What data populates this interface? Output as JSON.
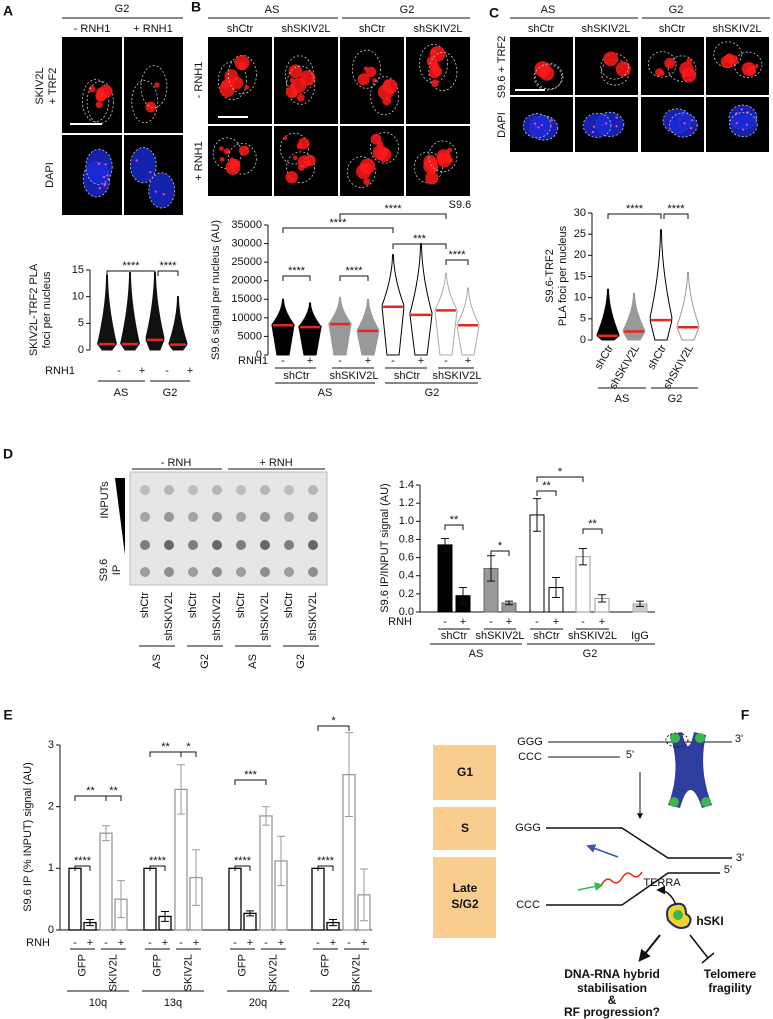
{
  "panel_a": {
    "letter": "A",
    "phase": "G2",
    "columns": [
      "- RNH1",
      "+ RNH1"
    ],
    "stain": [
      "SKIV2L",
      "+ TRF2"
    ],
    "counterstain": "DAPI",
    "chart": {
      "ylabel": [
        "SKIV2L-TRF2 PLA",
        "foci per nucleus"
      ],
      "ylim": [
        0,
        15
      ],
      "yticks": [
        0,
        5,
        10,
        15
      ],
      "medians": [
        1.1,
        1.1,
        1.9,
        1.0
      ],
      "maxima": [
        14,
        14.5,
        14.5,
        10
      ],
      "colors": [
        "#111111",
        "#111111",
        "#111111",
        "#111111"
      ],
      "treatment_label": "RNH1",
      "treatment": [
        "-",
        "+",
        "-",
        "+"
      ],
      "groups": [
        "AS",
        "G2"
      ],
      "significance": [
        "****",
        "****"
      ]
    }
  },
  "panel_b": {
    "letter": "B",
    "phases": [
      "AS",
      "G2"
    ],
    "columns": [
      "shCtr",
      "shSKIV2L",
      "shCtr",
      "shSKIV2L"
    ],
    "rows": [
      "- RNH1",
      "+ RNH1"
    ],
    "stain": "S9.6",
    "chart": {
      "ylabel": "S9.6 signal per nucleus (AU)",
      "ylim": [
        0,
        35000
      ],
      "yticks": [
        0,
        5000,
        10000,
        15000,
        20000,
        25000,
        30000,
        35000
      ],
      "medians": [
        8000,
        7500,
        8300,
        6500,
        13000,
        10800,
        12000,
        8000
      ],
      "maxima": [
        15000,
        14000,
        15500,
        15000,
        27000,
        30000,
        22000,
        18000
      ],
      "colors": [
        "#000000",
        "#000000",
        "#999999",
        "#999999",
        "#ffffff",
        "#ffffff",
        "#ffffff",
        "#ffffff"
      ],
      "edge_colors": [
        "#000000",
        "#000000",
        "#999999",
        "#999999",
        "#000000",
        "#000000",
        "#aaaaaa",
        "#aaaaaa"
      ],
      "treatment_label": "RNH1",
      "treatment": [
        "-",
        "+",
        "-",
        "+",
        "-",
        "+",
        "-",
        "+"
      ],
      "lines": [
        "shCtr",
        "shSKIV2L",
        "shCtr",
        "shSKIV2L"
      ],
      "groups": [
        "AS",
        "G2"
      ],
      "significance": [
        "****",
        "****",
        "***",
        "****",
        "****",
        "****"
      ]
    }
  },
  "panel_c": {
    "letter": "C",
    "phases": [
      "AS",
      "G2"
    ],
    "columns": [
      "shCtr",
      "shSKIV2L",
      "shCtr",
      "shSKIV2L"
    ],
    "stain": "S9.6 + TRF2",
    "counterstain": "DAPI",
    "chart": {
      "ylabel": [
        "S9.6-TRF2",
        "PLA foci per nucleus"
      ],
      "ylim": [
        0,
        30
      ],
      "yticks": [
        0,
        5,
        10,
        15,
        20,
        25,
        30
      ],
      "medians": [
        1,
        2,
        4.7,
        3
      ],
      "maxima": [
        12,
        11,
        26,
        16
      ],
      "colors": [
        "#000000",
        "#999999",
        "#ffffff",
        "#ffffff"
      ],
      "edge_colors": [
        "#000000",
        "#999999",
        "#000000",
        "#999999"
      ],
      "lines": [
        "shCtr",
        "shSKIV2L",
        "shCtr",
        "shSKIV2L"
      ],
      "groups": [
        "AS",
        "G2"
      ],
      "significance": [
        "****",
        "****"
      ]
    }
  },
  "panel_d": {
    "letter": "D",
    "blot": {
      "treatments": [
        "- RNH",
        "+ RNH"
      ],
      "inputs_label": "INPUTs",
      "ip_label": [
        "S9.6",
        "IP"
      ],
      "lanes": [
        "shCtr",
        "shSKIV2L",
        "shCtr",
        "shSKIV2L",
        "shCtr",
        "shSKIV2L",
        "shCtr",
        "shSKIV2L"
      ],
      "groups": [
        "AS",
        "G2",
        "AS",
        "G2"
      ]
    },
    "chart": {
      "ylabel": "S9.6 IP/INPUT signal (AU)",
      "ylim": [
        0,
        1.4
      ],
      "yticks": [
        {
          "value": 0,
          "label": "0.0"
        },
        0.2,
        0.4,
        0.6,
        0.8,
        {
          "value": 1,
          "label": "1.0"
        },
        1.2,
        1.4
      ],
      "values": [
        0.74,
        0.18,
        0.48,
        0.1,
        1.07,
        0.27,
        0.61,
        0.15,
        0.09
      ],
      "errors": [
        0.07,
        0.09,
        0.14,
        0.02,
        0.18,
        0.11,
        0.09,
        0.04,
        0.03
      ],
      "colors": [
        "#000000",
        "#000000",
        "#999999",
        "#999999",
        "#ffffff",
        "#ffffff",
        "#ffffff",
        "#ffffff",
        "#cccccc"
      ],
      "edge_colors": [
        "#000000",
        "#000000",
        "#666666",
        "#666666",
        "#000000",
        "#000000",
        "#999999",
        "#999999",
        "#aaaaaa"
      ],
      "treatment_label": "RNH",
      "treatment": [
        "-",
        "+",
        "-",
        "+",
        "-",
        "+",
        "-",
        "+",
        null
      ],
      "lines": [
        "shCtr",
        "shSKIV2L",
        "shCtr",
        "shSKIV2L",
        "IgG"
      ],
      "groups": [
        "AS",
        "G2"
      ],
      "significance": [
        "**",
        "*",
        "*",
        "**",
        "**"
      ]
    }
  },
  "panel_e": {
    "letter": "E",
    "chart": {
      "ylabel": "S9.6 IP (% INPUT) signal (AU)",
      "ylim": [
        0,
        3
      ],
      "yticks": [
        0,
        1,
        2,
        3
      ],
      "treatment_label": "RNH",
      "treatment": [
        "-",
        "+",
        "-",
        "+"
      ],
      "lines": [
        "GFP",
        "SKIV2L"
      ],
      "colors": [
        "#000000",
        "#999999"
      ],
      "groups": [
        {
          "name": "10q",
          "values": [
            1,
            0.12,
            1.57,
            0.5
          ],
          "errors": [
            0,
            0.05,
            0.12,
            0.3
          ],
          "significance": [
            "****",
            "**",
            "**"
          ]
        },
        {
          "name": "13q",
          "values": [
            1,
            0.22,
            2.28,
            0.85
          ],
          "errors": [
            0,
            0.08,
            0.4,
            0.45
          ],
          "significance": [
            "****",
            "**",
            "*"
          ]
        },
        {
          "name": "20q",
          "values": [
            1,
            0.27,
            1.85,
            1.12
          ],
          "errors": [
            0,
            0.04,
            0.15,
            0.4
          ],
          "significance": [
            "****",
            "***"
          ]
        },
        {
          "name": "22q",
          "values": [
            1,
            0.12,
            2.52,
            0.57
          ],
          "errors": [
            0,
            0.05,
            0.68,
            0.42
          ],
          "significance": [
            "****",
            "*"
          ]
        }
      ]
    }
  },
  "panel_f": {
    "letter": "F",
    "phases": [
      "G1",
      "S"
    ],
    "late_phase": [
      "Late",
      "S/G2"
    ],
    "g1_top": "GGG",
    "g1_top_end": "3'",
    "g1_bottom": "CCC",
    "g1_bottom_end": "5'",
    "fork_top": "GGG",
    "fork_top_end": "3'",
    "fork_bottom": "CCC",
    "fork_bottom_end": "5'",
    "rna": "TERRA",
    "complex": "hSKI",
    "outcome": [
      "DNA-RNA hybrid",
      "stabilisation",
      "&",
      "RF progression?"
    ],
    "inhibited": [
      "Telomere",
      "fragility"
    ]
  }
}
